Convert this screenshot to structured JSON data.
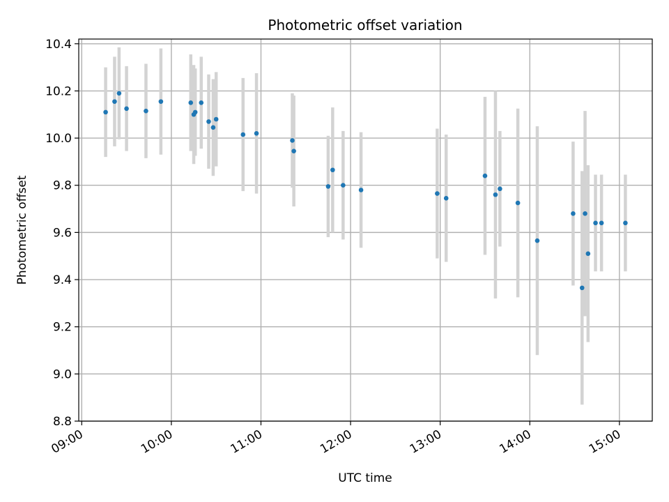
{
  "chart_data": {
    "type": "scatter",
    "title": "Photometric offset variation",
    "xlabel": "UTC time",
    "ylabel": "Photometric offset",
    "xlim": [
      "08:58",
      "15:22"
    ],
    "ylim": [
      8.8,
      10.42
    ],
    "x_ticks": [
      "09:00",
      "10:00",
      "11:00",
      "12:00",
      "13:00",
      "14:00",
      "15:00"
    ],
    "y_ticks": [
      "8.8",
      "9.0",
      "9.2",
      "9.4",
      "9.6",
      "9.8",
      "10.0",
      "10.2",
      "10.4"
    ],
    "grid": true,
    "colors": {
      "points": "#1f77b4",
      "errorbars": "#d3d3d3",
      "grid": "#b0b0b0",
      "axes": "#000000"
    },
    "series": [
      {
        "points": [
          {
            "x": "09:16",
            "y": 10.11,
            "yerr": 0.19
          },
          {
            "x": "09:22",
            "y": 10.155,
            "yerr": 0.19
          },
          {
            "x": "09:25",
            "y": 10.19,
            "yerr": 0.195
          },
          {
            "x": "09:30",
            "y": 10.125,
            "yerr": 0.18
          },
          {
            "x": "09:43",
            "y": 10.115,
            "yerr": 0.2
          },
          {
            "x": "09:53",
            "y": 10.155,
            "yerr": 0.225
          },
          {
            "x": "10:13",
            "y": 10.15,
            "yerr": 0.205
          },
          {
            "x": "10:15",
            "y": 10.1,
            "yerr": 0.21
          },
          {
            "x": "10:16",
            "y": 10.11,
            "yerr": 0.185
          },
          {
            "x": "10:20",
            "y": 10.15,
            "yerr": 0.195
          },
          {
            "x": "10:25",
            "y": 10.07,
            "yerr": 0.2
          },
          {
            "x": "10:28",
            "y": 10.045,
            "yerr": 0.205
          },
          {
            "x": "10:30",
            "y": 10.08,
            "yerr": 0.2
          },
          {
            "x": "10:48",
            "y": 10.015,
            "yerr": 0.24
          },
          {
            "x": "10:57",
            "y": 10.02,
            "yerr": 0.255
          },
          {
            "x": "11:21",
            "y": 9.99,
            "yerr": 0.2
          },
          {
            "x": "11:22",
            "y": 9.945,
            "yerr": 0.235
          },
          {
            "x": "11:45",
            "y": 9.795,
            "yerr": 0.215
          },
          {
            "x": "11:48",
            "y": 9.865,
            "yerr": 0.265
          },
          {
            "x": "11:55",
            "y": 9.8,
            "yerr": 0.23
          },
          {
            "x": "12:07",
            "y": 9.78,
            "yerr": 0.245
          },
          {
            "x": "12:58",
            "y": 9.765,
            "yerr": 0.275
          },
          {
            "x": "13:04",
            "y": 9.745,
            "yerr": 0.27
          },
          {
            "x": "13:30",
            "y": 9.84,
            "yerr": 0.335
          },
          {
            "x": "13:37",
            "y": 9.76,
            "yerr": 0.44
          },
          {
            "x": "13:40",
            "y": 9.785,
            "yerr": 0.245
          },
          {
            "x": "13:52",
            "y": 9.725,
            "yerr": 0.4
          },
          {
            "x": "14:05",
            "y": 9.565,
            "yerr": 0.485
          },
          {
            "x": "14:29",
            "y": 9.68,
            "yerr": 0.305
          },
          {
            "x": "14:35",
            "y": 9.365,
            "yerr": 0.495
          },
          {
            "x": "14:37",
            "y": 9.68,
            "yerr": 0.435
          },
          {
            "x": "14:39",
            "y": 9.51,
            "yerr": 0.375
          },
          {
            "x": "14:44",
            "y": 9.64,
            "yerr": 0.205
          },
          {
            "x": "14:48",
            "y": 9.64,
            "yerr": 0.205
          },
          {
            "x": "15:04",
            "y": 9.64,
            "yerr": 0.205
          }
        ]
      }
    ]
  }
}
